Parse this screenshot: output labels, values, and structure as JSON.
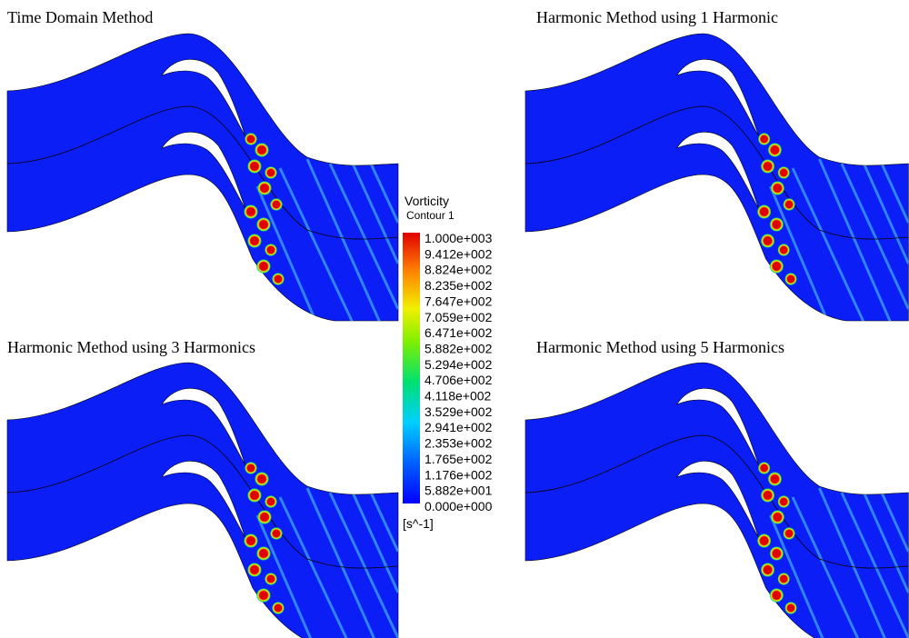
{
  "panels": [
    {
      "title": "Time Domain Method"
    },
    {
      "title": "Harmonic Method using 1 Harmonic"
    },
    {
      "title": "Harmonic Method using 3 Harmonics"
    },
    {
      "title": "Harmonic Method using 5 Harmonics"
    }
  ],
  "legend": {
    "title": "Vorticity",
    "subtitle": "Contour 1",
    "labels": [
      "1.000e+003",
      "9.412e+002",
      "8.824e+002",
      "8.235e+002",
      "7.647e+002",
      "7.059e+002",
      "6.471e+002",
      "5.882e+002",
      "5.294e+002",
      "4.706e+002",
      "4.118e+002",
      "3.529e+002",
      "2.941e+002",
      "2.353e+002",
      "1.765e+002",
      "1.176e+002",
      "5.882e+001",
      "0.000e+000"
    ],
    "unit": "[s^-1]"
  }
}
